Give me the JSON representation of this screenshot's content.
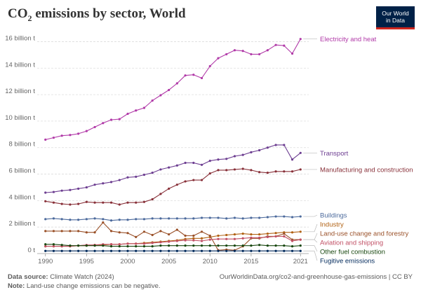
{
  "title": {
    "main": "CO",
    "sub": "2",
    "rest": " emissions by sector, World"
  },
  "logo": {
    "line1": "Our World",
    "line2": "in Data"
  },
  "footer": {
    "source_label": "Data source:",
    "source_text": "Climate Watch (2024)",
    "url": "OurWorldinData.org/co2-and-greenhouse-gas-emissions | CC BY",
    "note_label": "Note:",
    "note_text": "Land-use change emissions can be negative."
  },
  "chart_data": {
    "type": "line",
    "title": "CO2 emissions by sector, World",
    "xlabel": "",
    "ylabel": "",
    "x": [
      1990,
      1991,
      1992,
      1993,
      1994,
      1995,
      1996,
      1997,
      1998,
      1999,
      2000,
      2001,
      2002,
      2003,
      2004,
      2005,
      2006,
      2007,
      2008,
      2009,
      2010,
      2011,
      2012,
      2013,
      2014,
      2015,
      2016,
      2017,
      2018,
      2019,
      2020,
      2021
    ],
    "xlim": [
      1989,
      2022
    ],
    "ylim": [
      0,
      16.5
    ],
    "x_ticks": [
      {
        "v": 1990,
        "label": "1990"
      },
      {
        "v": 1995,
        "label": "1995"
      },
      {
        "v": 2000,
        "label": "2000"
      },
      {
        "v": 2005,
        "label": "2005"
      },
      {
        "v": 2010,
        "label": "2010"
      },
      {
        "v": 2015,
        "label": "2015"
      },
      {
        "v": 2021,
        "label": "2021"
      }
    ],
    "y_ticks": [
      {
        "v": 0,
        "label": "0 t"
      },
      {
        "v": 2,
        "label": "2 billion t"
      },
      {
        "v": 4,
        "label": "4 billion t"
      },
      {
        "v": 6,
        "label": "6 billion t"
      },
      {
        "v": 8,
        "label": "8 billion t"
      },
      {
        "v": 10,
        "label": "10 billion t"
      },
      {
        "v": 12,
        "label": "12 billion t"
      },
      {
        "v": 14,
        "label": "14 billion t"
      },
      {
        "v": 16,
        "label": "16 billion t"
      }
    ],
    "grid": true,
    "series": [
      {
        "name": "Electricity and heat",
        "color": "#b13aa8",
        "values": [
          8.6,
          8.75,
          8.9,
          8.95,
          9.05,
          9.25,
          9.55,
          9.85,
          10.1,
          10.15,
          10.55,
          10.8,
          11.0,
          11.55,
          11.95,
          12.35,
          12.85,
          13.45,
          13.5,
          13.25,
          14.15,
          14.75,
          15.05,
          15.35,
          15.3,
          15.05,
          15.05,
          15.35,
          15.75,
          15.7,
          15.1,
          16.2
        ]
      },
      {
        "name": "Transport",
        "color": "#6d3e91",
        "values": [
          4.6,
          4.65,
          4.75,
          4.8,
          4.9,
          5.0,
          5.2,
          5.3,
          5.4,
          5.55,
          5.75,
          5.8,
          5.95,
          6.1,
          6.35,
          6.5,
          6.65,
          6.85,
          6.85,
          6.7,
          7.0,
          7.1,
          7.15,
          7.35,
          7.45,
          7.65,
          7.8,
          8.0,
          8.2,
          8.2,
          7.1,
          7.6
        ]
      },
      {
        "name": "Manufacturing and construction",
        "color": "#883039",
        "values": [
          3.95,
          3.85,
          3.75,
          3.7,
          3.75,
          3.9,
          3.85,
          3.85,
          3.85,
          3.7,
          3.85,
          3.85,
          3.9,
          4.1,
          4.5,
          4.9,
          5.2,
          5.45,
          5.55,
          5.55,
          6.05,
          6.3,
          6.3,
          6.35,
          6.4,
          6.3,
          6.15,
          6.1,
          6.2,
          6.2,
          6.2,
          6.35
        ]
      },
      {
        "name": "Buildings",
        "color": "#4c6a9c",
        "values": [
          2.6,
          2.65,
          2.6,
          2.55,
          2.55,
          2.6,
          2.65,
          2.6,
          2.5,
          2.55,
          2.55,
          2.6,
          2.6,
          2.65,
          2.65,
          2.65,
          2.65,
          2.65,
          2.65,
          2.7,
          2.7,
          2.7,
          2.65,
          2.7,
          2.65,
          2.7,
          2.7,
          2.75,
          2.8,
          2.8,
          2.75,
          2.8
        ]
      },
      {
        "name": "Industry",
        "color": "#b16214",
        "values": [
          0.55,
          0.55,
          0.55,
          0.55,
          0.6,
          0.6,
          0.65,
          0.65,
          0.7,
          0.7,
          0.75,
          0.75,
          0.8,
          0.85,
          0.9,
          0.95,
          1.0,
          1.1,
          1.15,
          1.15,
          1.25,
          1.35,
          1.4,
          1.45,
          1.5,
          1.45,
          1.45,
          1.5,
          1.55,
          1.6,
          1.6,
          1.65
        ]
      },
      {
        "name": "Land-use change and forestry",
        "color": "#9a5129",
        "values": [
          1.7,
          1.7,
          1.7,
          1.7,
          1.7,
          1.6,
          1.6,
          2.35,
          1.7,
          1.6,
          1.55,
          1.25,
          1.65,
          1.4,
          1.7,
          1.45,
          1.8,
          1.35,
          1.35,
          1.65,
          1.35,
          0.25,
          0.3,
          0.25,
          0.55,
          1.15,
          1.15,
          1.3,
          1.3,
          1.5,
          1.05,
          1.05
        ]
      },
      {
        "name": "Aviation and shipping",
        "color": "#c15065",
        "values": [
          0.55,
          0.55,
          0.55,
          0.55,
          0.6,
          0.65,
          0.65,
          0.7,
          0.7,
          0.7,
          0.75,
          0.75,
          0.75,
          0.8,
          0.85,
          0.9,
          0.95,
          1.0,
          1.0,
          0.95,
          1.05,
          1.1,
          1.1,
          1.1,
          1.15,
          1.2,
          1.2,
          1.25,
          1.3,
          1.3,
          0.95,
          1.05
        ]
      },
      {
        "name": "Other fuel combustion",
        "color": "#18470f",
        "values": [
          0.7,
          0.7,
          0.65,
          0.6,
          0.6,
          0.6,
          0.6,
          0.6,
          0.55,
          0.55,
          0.55,
          0.55,
          0.55,
          0.55,
          0.6,
          0.6,
          0.6,
          0.6,
          0.6,
          0.6,
          0.6,
          0.6,
          0.6,
          0.6,
          0.6,
          0.6,
          0.65,
          0.6,
          0.6,
          0.6,
          0.55,
          0.6
        ]
      },
      {
        "name": "Fugitive emissions",
        "color": "#00295b",
        "values": [
          0.2,
          0.2,
          0.2,
          0.2,
          0.2,
          0.2,
          0.2,
          0.2,
          0.2,
          0.2,
          0.2,
          0.2,
          0.2,
          0.2,
          0.2,
          0.2,
          0.2,
          0.2,
          0.2,
          0.2,
          0.2,
          0.2,
          0.2,
          0.2,
          0.2,
          0.2,
          0.2,
          0.2,
          0.2,
          0.2,
          0.2,
          0.2
        ]
      }
    ]
  }
}
